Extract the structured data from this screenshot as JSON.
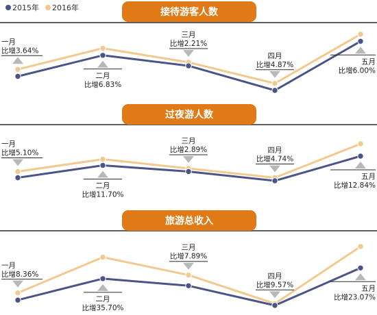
{
  "legend": [
    {
      "label": "2015年",
      "color": "#4a5487"
    },
    {
      "label": "2016年",
      "color": "#f2c98e"
    }
  ],
  "colors": {
    "series_2015": "#4a5487",
    "series_2016": "#f2c98e",
    "banner": "#e07a17",
    "rule": "#2a2a2a",
    "arrow": "#b8b8b8"
  },
  "chart_data": [
    {
      "type": "line",
      "title": "接待游客人数",
      "categories": [
        "一月",
        "二月",
        "三月",
        "四月",
        "五月"
      ],
      "series": [
        {
          "name": "2015年",
          "values": [
            100,
            106,
            103,
            96,
            110
          ]
        },
        {
          "name": "2016年",
          "values": [
            102,
            108,
            104,
            98,
            112
          ]
        }
      ],
      "annotations": [
        {
          "month": "一月",
          "text": "比增3.64%",
          "direction": "up",
          "side": "above"
        },
        {
          "month": "二月",
          "text": "比增6.83%",
          "direction": "up",
          "side": "below"
        },
        {
          "month": "三月",
          "text": "比增2.21%",
          "direction": "down",
          "side": "above"
        },
        {
          "month": "四月",
          "text": "比增4.87%",
          "direction": "down",
          "side": "above"
        },
        {
          "month": "五月",
          "text": "比增6.00%",
          "direction": "up",
          "side": "below"
        }
      ]
    },
    {
      "type": "line",
      "title": "过夜游人数",
      "categories": [
        "一月",
        "二月",
        "三月",
        "四月",
        "五月"
      ],
      "series": [
        {
          "name": "2015年",
          "values": [
            100,
            104,
            102,
            99,
            107
          ]
        },
        {
          "name": "2016年",
          "values": [
            102,
            106,
            103,
            100,
            111
          ]
        }
      ],
      "annotations": [
        {
          "month": "一月",
          "text": "比增5.10%",
          "direction": "down",
          "side": "above"
        },
        {
          "month": "二月",
          "text": "比增11.70%",
          "direction": "up",
          "side": "below"
        },
        {
          "month": "三月",
          "text": "比增2.89%",
          "direction": "down",
          "side": "above"
        },
        {
          "month": "四月",
          "text": "比增4.74%",
          "direction": "down",
          "side": "above"
        },
        {
          "month": "五月",
          "text": "比增12.84%",
          "direction": "up",
          "side": "below"
        }
      ]
    },
    {
      "type": "line",
      "title": "旅游总收入",
      "categories": [
        "一月",
        "二月",
        "三月",
        "四月",
        "五月"
      ],
      "series": [
        {
          "name": "2015年",
          "values": [
            100,
            112,
            108,
            97,
            118
          ]
        },
        {
          "name": "2016年",
          "values": [
            104,
            124,
            114,
            98,
            130
          ]
        }
      ],
      "annotations": [
        {
          "month": "一月",
          "text": "比增8.36%",
          "direction": "down",
          "side": "above"
        },
        {
          "month": "二月",
          "text": "比增35.70%",
          "direction": "up",
          "side": "below"
        },
        {
          "month": "三月",
          "text": "比增7.89%",
          "direction": "down",
          "side": "above"
        },
        {
          "month": "四月",
          "text": "比增9.57%",
          "direction": "down",
          "side": "above"
        },
        {
          "month": "五月",
          "text": "比增23.07%",
          "direction": "up",
          "side": "below"
        }
      ]
    }
  ]
}
